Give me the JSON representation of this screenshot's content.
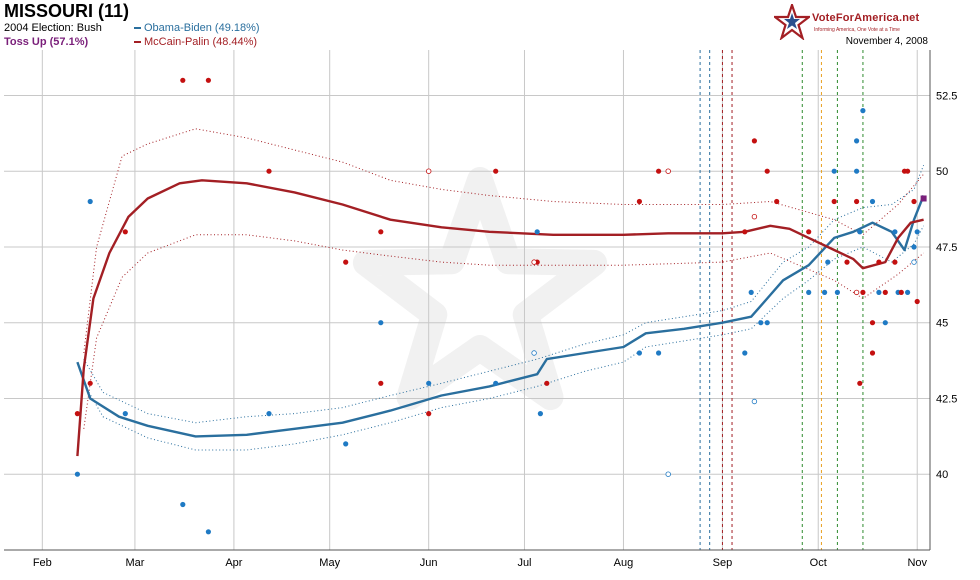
{
  "header": {
    "title": "MISSOURI (11)",
    "election_2004": "2004 Election: Bush",
    "status": "Toss Up (57.1%)",
    "legend_obama": "Obama-Biden (49.18%)",
    "legend_mccain": "McCain-Palin (48.44%)",
    "brand": "VoteForAmerica.net",
    "tagline": "Informing America, One Vote at a Time",
    "date": "November 4, 2008"
  },
  "colors": {
    "obama": "#2a6f9e",
    "mccain": "#a31f24",
    "status": "#7a1f7a",
    "grid": "#c8c8c8",
    "poll_obama": "#1f7ac4",
    "poll_mccain": "#c41010"
  },
  "icons": {
    "logo": "star-logo-icon"
  },
  "chart_data": {
    "type": "line",
    "x_axis": {
      "type": "date",
      "range": [
        "2008-01-20",
        "2008-11-05"
      ],
      "ticks": [
        {
          "date": "2008-02-01",
          "label": "Feb"
        },
        {
          "date": "2008-03-01",
          "label": "Mar"
        },
        {
          "date": "2008-04-01",
          "label": "Apr"
        },
        {
          "date": "2008-05-01",
          "label": "May"
        },
        {
          "date": "2008-06-01",
          "label": "Jun"
        },
        {
          "date": "2008-07-01",
          "label": "Jul"
        },
        {
          "date": "2008-08-01",
          "label": "Aug"
        },
        {
          "date": "2008-09-01",
          "label": "Sep"
        },
        {
          "date": "2008-10-01",
          "label": "Oct"
        },
        {
          "date": "2008-11-01",
          "label": "Nov"
        }
      ]
    },
    "y_axis": {
      "range": [
        37.5,
        54
      ],
      "ticks": [
        "40",
        "42.5",
        "45",
        "47.5",
        "50",
        "52.5"
      ]
    },
    "grid": true,
    "legend_position": "top-left",
    "event_lines": [
      {
        "date": "2008-08-25",
        "color": "#2a6f9e"
      },
      {
        "date": "2008-08-28",
        "color": "#2a6f9e"
      },
      {
        "date": "2008-09-01",
        "color": "#a31f24"
      },
      {
        "date": "2008-09-04",
        "color": "#a31f24"
      },
      {
        "date": "2008-09-26",
        "color": "#2e8b2e"
      },
      {
        "date": "2008-10-02",
        "color": "#e8a020"
      },
      {
        "date": "2008-10-07",
        "color": "#2e8b2e"
      },
      {
        "date": "2008-10-15",
        "color": "#2e8b2e"
      }
    ],
    "series": [
      {
        "name": "Obama-Biden",
        "color": "#2a6f9e",
        "trend": [
          [
            "2008-02-12",
            43.7
          ],
          [
            "2008-02-16",
            42.5
          ],
          [
            "2008-02-25",
            41.9
          ],
          [
            "2008-03-05",
            41.6
          ],
          [
            "2008-03-20",
            41.25
          ],
          [
            "2008-04-05",
            41.3
          ],
          [
            "2008-04-20",
            41.5
          ],
          [
            "2008-05-05",
            41.7
          ],
          [
            "2008-05-20",
            42.1
          ],
          [
            "2008-06-05",
            42.6
          ],
          [
            "2008-06-20",
            42.9
          ],
          [
            "2008-07-05",
            43.3
          ],
          [
            "2008-07-08",
            43.8
          ],
          [
            "2008-07-20",
            44.0
          ],
          [
            "2008-08-01",
            44.2
          ],
          [
            "2008-08-08",
            44.65
          ],
          [
            "2008-08-20",
            44.8
          ],
          [
            "2008-09-01",
            45.0
          ],
          [
            "2008-09-10",
            45.2
          ],
          [
            "2008-09-15",
            45.8
          ],
          [
            "2008-09-20",
            46.4
          ],
          [
            "2008-09-28",
            46.9
          ],
          [
            "2008-10-06",
            47.8
          ],
          [
            "2008-10-12",
            48.0
          ],
          [
            "2008-10-18",
            48.3
          ],
          [
            "2008-10-24",
            48.0
          ],
          [
            "2008-10-28",
            47.4
          ],
          [
            "2008-10-31",
            48.4
          ],
          [
            "2008-11-03",
            49.2
          ]
        ],
        "upper": [
          [
            "2008-02-14",
            43.8
          ],
          [
            "2008-02-20",
            42.7
          ],
          [
            "2008-03-05",
            42.0
          ],
          [
            "2008-03-20",
            41.7
          ],
          [
            "2008-04-05",
            41.9
          ],
          [
            "2008-04-20",
            42.0
          ],
          [
            "2008-05-05",
            42.2
          ],
          [
            "2008-05-20",
            42.6
          ],
          [
            "2008-06-05",
            43.0
          ],
          [
            "2008-06-20",
            43.4
          ],
          [
            "2008-07-05",
            43.8
          ],
          [
            "2008-07-20",
            44.3
          ],
          [
            "2008-08-01",
            44.6
          ],
          [
            "2008-08-08",
            45.0
          ],
          [
            "2008-08-20",
            45.2
          ],
          [
            "2008-09-01",
            45.4
          ],
          [
            "2008-09-10",
            45.7
          ],
          [
            "2008-09-20",
            47.0
          ],
          [
            "2008-09-28",
            47.5
          ],
          [
            "2008-10-06",
            48.4
          ],
          [
            "2008-10-15",
            48.8
          ],
          [
            "2008-10-24",
            48.9
          ],
          [
            "2008-10-31",
            49.4
          ],
          [
            "2008-11-03",
            50.2
          ]
        ],
        "lower": [
          [
            "2008-02-14",
            43.0
          ],
          [
            "2008-02-20",
            41.9
          ],
          [
            "2008-03-05",
            41.2
          ],
          [
            "2008-03-20",
            40.8
          ],
          [
            "2008-04-05",
            40.8
          ],
          [
            "2008-04-20",
            41.0
          ],
          [
            "2008-05-05",
            41.3
          ],
          [
            "2008-05-20",
            41.7
          ],
          [
            "2008-06-05",
            42.2
          ],
          [
            "2008-06-20",
            42.5
          ],
          [
            "2008-07-05",
            42.9
          ],
          [
            "2008-07-20",
            43.4
          ],
          [
            "2008-08-01",
            43.7
          ],
          [
            "2008-08-08",
            44.2
          ],
          [
            "2008-08-20",
            44.4
          ],
          [
            "2008-09-01",
            44.6
          ],
          [
            "2008-09-10",
            44.8
          ],
          [
            "2008-09-20",
            45.8
          ],
          [
            "2008-09-28",
            46.4
          ],
          [
            "2008-10-06",
            47.1
          ],
          [
            "2008-10-15",
            47.5
          ],
          [
            "2008-10-24",
            47.0
          ],
          [
            "2008-10-31",
            47.6
          ],
          [
            "2008-11-03",
            48.2
          ]
        ],
        "polls": [
          [
            "2008-02-12",
            40
          ],
          [
            "2008-02-16",
            49
          ],
          [
            "2008-02-27",
            42
          ],
          [
            "2008-03-16",
            39
          ],
          [
            "2008-03-24",
            38.1
          ],
          [
            "2008-04-12",
            42
          ],
          [
            "2008-05-06",
            41
          ],
          [
            "2008-05-17",
            45
          ],
          [
            "2008-06-01",
            43
          ],
          [
            "2008-06-22",
            43
          ],
          [
            "2008-07-05",
            48
          ],
          [
            "2008-07-06",
            42
          ],
          [
            "2008-08-06",
            44
          ],
          [
            "2008-08-12",
            44
          ],
          [
            "2008-09-08",
            44
          ],
          [
            "2008-09-10",
            46
          ],
          [
            "2008-09-13",
            45
          ],
          [
            "2008-09-15",
            45
          ],
          [
            "2008-09-28",
            46
          ],
          [
            "2008-10-03",
            46
          ],
          [
            "2008-10-04",
            47
          ],
          [
            "2008-10-06",
            50
          ],
          [
            "2008-10-07",
            46
          ],
          [
            "2008-10-13",
            50
          ],
          [
            "2008-10-13",
            51
          ],
          [
            "2008-10-14",
            48
          ],
          [
            "2008-10-15",
            52
          ],
          [
            "2008-10-18",
            49
          ],
          [
            "2008-10-20",
            46
          ],
          [
            "2008-10-22",
            45
          ],
          [
            "2008-10-25",
            48
          ],
          [
            "2008-10-26",
            46
          ],
          [
            "2008-10-29",
            46
          ],
          [
            "2008-10-31",
            47.5
          ],
          [
            "2008-11-01",
            48
          ]
        ],
        "polls_open": [
          [
            "2008-07-04",
            44
          ],
          [
            "2008-08-15",
            40
          ],
          [
            "2008-09-11",
            42.4
          ],
          [
            "2008-10-31",
            47
          ]
        ]
      },
      {
        "name": "McCain-Palin",
        "color": "#a31f24",
        "trend": [
          [
            "2008-02-12",
            40.6
          ],
          [
            "2008-02-14",
            43.5
          ],
          [
            "2008-02-17",
            45.8
          ],
          [
            "2008-02-22",
            47.3
          ],
          [
            "2008-02-28",
            48.5
          ],
          [
            "2008-03-05",
            49.1
          ],
          [
            "2008-03-15",
            49.6
          ],
          [
            "2008-03-22",
            49.7
          ],
          [
            "2008-04-05",
            49.6
          ],
          [
            "2008-04-20",
            49.3
          ],
          [
            "2008-05-05",
            48.9
          ],
          [
            "2008-05-20",
            48.4
          ],
          [
            "2008-06-05",
            48.15
          ],
          [
            "2008-06-20",
            48.0
          ],
          [
            "2008-07-10",
            47.9
          ],
          [
            "2008-08-01",
            47.9
          ],
          [
            "2008-08-15",
            47.95
          ],
          [
            "2008-09-01",
            47.95
          ],
          [
            "2008-09-08",
            48.0
          ],
          [
            "2008-09-16",
            48.2
          ],
          [
            "2008-09-22",
            48.1
          ],
          [
            "2008-09-28",
            47.8
          ],
          [
            "2008-10-06",
            47.4
          ],
          [
            "2008-10-12",
            47.1
          ],
          [
            "2008-10-15",
            46.8
          ],
          [
            "2008-10-22",
            47.0
          ],
          [
            "2008-10-26",
            47.8
          ],
          [
            "2008-10-30",
            48.3
          ],
          [
            "2008-11-03",
            48.4
          ]
        ],
        "upper": [
          [
            "2008-02-14",
            44.0
          ],
          [
            "2008-02-18",
            47.5
          ],
          [
            "2008-02-26",
            50.5
          ],
          [
            "2008-03-05",
            50.9
          ],
          [
            "2008-03-20",
            51.4
          ],
          [
            "2008-04-05",
            51.1
          ],
          [
            "2008-04-20",
            50.7
          ],
          [
            "2008-05-05",
            50.3
          ],
          [
            "2008-05-20",
            49.7
          ],
          [
            "2008-06-05",
            49.4
          ],
          [
            "2008-06-20",
            49.2
          ],
          [
            "2008-07-10",
            49.0
          ],
          [
            "2008-08-01",
            48.9
          ],
          [
            "2008-09-01",
            48.9
          ],
          [
            "2008-09-16",
            49.0
          ],
          [
            "2008-10-06",
            48.4
          ],
          [
            "2008-10-15",
            47.9
          ],
          [
            "2008-10-26",
            48.9
          ],
          [
            "2008-11-03",
            49.9
          ]
        ],
        "lower": [
          [
            "2008-02-14",
            41.5
          ],
          [
            "2008-02-18",
            44.5
          ],
          [
            "2008-02-26",
            46.5
          ],
          [
            "2008-03-05",
            47.3
          ],
          [
            "2008-03-20",
            47.9
          ],
          [
            "2008-04-05",
            47.9
          ],
          [
            "2008-04-20",
            47.7
          ],
          [
            "2008-05-05",
            47.4
          ],
          [
            "2008-05-20",
            47.2
          ],
          [
            "2008-06-05",
            47.0
          ],
          [
            "2008-06-20",
            46.9
          ],
          [
            "2008-07-10",
            46.9
          ],
          [
            "2008-08-01",
            46.9
          ],
          [
            "2008-09-01",
            47.0
          ],
          [
            "2008-09-16",
            47.3
          ],
          [
            "2008-10-06",
            46.4
          ],
          [
            "2008-10-15",
            45.8
          ],
          [
            "2008-10-26",
            46.6
          ],
          [
            "2008-11-03",
            47.3
          ]
        ],
        "polls": [
          [
            "2008-02-12",
            42
          ],
          [
            "2008-02-16",
            43
          ],
          [
            "2008-02-27",
            48
          ],
          [
            "2008-03-16",
            53
          ],
          [
            "2008-03-24",
            53
          ],
          [
            "2008-04-12",
            50
          ],
          [
            "2008-05-06",
            47
          ],
          [
            "2008-05-17",
            48
          ],
          [
            "2008-05-17",
            43
          ],
          [
            "2008-06-01",
            42
          ],
          [
            "2008-06-22",
            50
          ],
          [
            "2008-07-05",
            47
          ],
          [
            "2008-07-08",
            43
          ],
          [
            "2008-08-06",
            49
          ],
          [
            "2008-08-12",
            50
          ],
          [
            "2008-09-08",
            48
          ],
          [
            "2008-09-11",
            51
          ],
          [
            "2008-09-15",
            50
          ],
          [
            "2008-09-18",
            49
          ],
          [
            "2008-09-28",
            48
          ],
          [
            "2008-10-06",
            49
          ],
          [
            "2008-10-10",
            47
          ],
          [
            "2008-10-13",
            49
          ],
          [
            "2008-10-14",
            43
          ],
          [
            "2008-10-15",
            46
          ],
          [
            "2008-10-18",
            45
          ],
          [
            "2008-10-18",
            44
          ],
          [
            "2008-10-20",
            47
          ],
          [
            "2008-10-22",
            46
          ],
          [
            "2008-10-25",
            47
          ],
          [
            "2008-10-27",
            46
          ],
          [
            "2008-10-28",
            50
          ],
          [
            "2008-10-29",
            50
          ],
          [
            "2008-10-31",
            49
          ],
          [
            "2008-11-01",
            45.7
          ]
        ],
        "polls_open": [
          [
            "2008-06-01",
            50
          ],
          [
            "2008-07-04",
            47
          ],
          [
            "2008-08-15",
            50
          ],
          [
            "2008-09-11",
            48.5
          ],
          [
            "2008-10-13",
            46
          ]
        ]
      }
    ]
  }
}
